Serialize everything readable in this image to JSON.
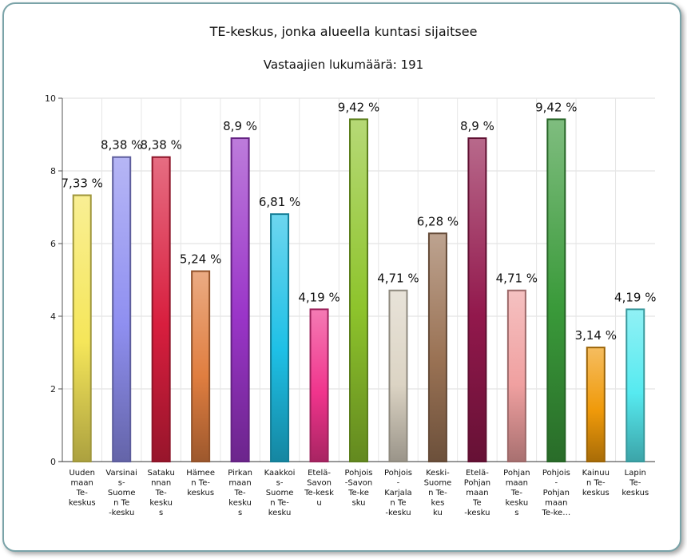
{
  "chart_data": {
    "type": "bar",
    "title": "TE-keskus, jonka alueella kuntasi sijaitsee",
    "subtitle": "Vastaajien lukumäärä: 191",
    "ylim": [
      0,
      10
    ],
    "yticks": [
      0,
      2,
      4,
      6,
      8,
      10
    ],
    "grid": true,
    "legend": "none",
    "categories": [
      "Uuden maan Te- keskus",
      "Varsinais- Suome n Te -kesku",
      "Sataku nnan Te- kesku s",
      "Hämee n Te- keskus",
      "Pirkan maan Te- kesku s",
      "Kaakkoi s- Suome n Te- kesku",
      "Etelä- Savon Te-kesk u",
      "Pohjois -Savon Te-ke sku",
      "Pohjois - Karjala n Te -kesku",
      "Keski- Suome n Te- kes ku",
      "Etelä- Pohjan maan Te -kesku",
      "Pohjan maan Te- kesku s",
      "Pohjois - Pohjan maan Te-ke…",
      "Kainuu n Te- keskus",
      "Lapin Te- keskus"
    ],
    "category_lines": [
      [
        "Uuden",
        "maan",
        "Te-",
        "keskus"
      ],
      [
        "Varsinai",
        "s-",
        "Suome",
        "n Te",
        "-kesku"
      ],
      [
        "Sataku",
        "nnan",
        "Te-",
        "kesku",
        "s"
      ],
      [
        "Hämee",
        "n Te-",
        "keskus"
      ],
      [
        "Pirkan",
        "maan",
        "Te-",
        "kesku",
        "s"
      ],
      [
        "Kaakkoi",
        "s-",
        "Suome",
        "n Te-",
        "kesku"
      ],
      [
        "Etelä-",
        "Savon",
        "Te-kesk",
        "u"
      ],
      [
        "Pohjois",
        "-Savon",
        "Te-ke",
        "sku"
      ],
      [
        "Pohjois",
        "-",
        "Karjala",
        "n Te",
        "-kesku"
      ],
      [
        "Keski-",
        "Suome",
        "n Te-",
        "kes",
        "ku"
      ],
      [
        "Etelä-",
        "Pohjan",
        "maan",
        "Te",
        "-kesku"
      ],
      [
        "Pohjan",
        "maan",
        "Te-",
        "kesku",
        "s"
      ],
      [
        "Pohjois",
        "-",
        "Pohjan",
        "maan",
        "Te-ke…"
      ],
      [
        "Kainuu",
        "n Te-",
        "keskus"
      ],
      [
        "Lapin",
        "Te-",
        "keskus"
      ]
    ],
    "values": [
      7.33,
      8.38,
      8.38,
      5.24,
      8.9,
      6.81,
      4.19,
      9.42,
      4.71,
      6.28,
      8.9,
      4.71,
      9.42,
      3.14,
      4.19
    ],
    "value_labels": [
      "7,33 %",
      "8,38 %",
      "8,38 %",
      "5,24 %",
      "8,9 %",
      "6,81 %",
      "4,19 %",
      "9,42 %",
      "4,71 %",
      "6,28 %",
      "8,9 %",
      "4,71 %",
      "9,42 %",
      "3,14 %",
      "4,19 %"
    ],
    "colors": [
      "#f5e65a",
      "#8f8ff0",
      "#d81e3e",
      "#e07e40",
      "#9a35c8",
      "#1ec0e6",
      "#f0348c",
      "#8ec42c",
      "#dcd4c4",
      "#9a7254",
      "#92184c",
      "#f0a0a0",
      "#3a9a3a",
      "#f09a0a",
      "#56eaf0"
    ]
  }
}
